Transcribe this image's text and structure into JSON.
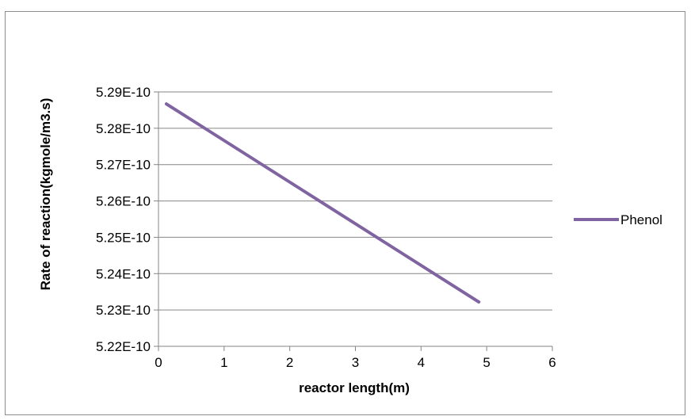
{
  "chart_data": {
    "type": "line",
    "xlabel": "reactor length(m)",
    "ylabel": "Rate of reaction(kgmole/m3.s)",
    "xlim": [
      0,
      6
    ],
    "ylim": [
      5.22e-10,
      5.29e-10
    ],
    "x_ticks": [
      0,
      1,
      2,
      3,
      4,
      5,
      6
    ],
    "x_tick_labels": [
      "0",
      "1",
      "2",
      "3",
      "4",
      "5",
      "6"
    ],
    "y_ticks": [
      5.22e-10,
      5.23e-10,
      5.24e-10,
      5.25e-10,
      5.26e-10,
      5.27e-10,
      5.28e-10,
      5.29e-10
    ],
    "y_tick_labels": [
      "5.22E-10",
      "5.23E-10",
      "5.24E-10",
      "5.25E-10",
      "5.26E-10",
      "5.27E-10",
      "5.28E-10",
      "5.29E-10"
    ],
    "grid": "horizontal",
    "legend_position": "right",
    "series": [
      {
        "name": "Phenol",
        "color": "#8064a2",
        "x": [
          0.12,
          4.88
        ],
        "y": [
          5.2867e-10,
          5.2322e-10
        ]
      }
    ]
  }
}
